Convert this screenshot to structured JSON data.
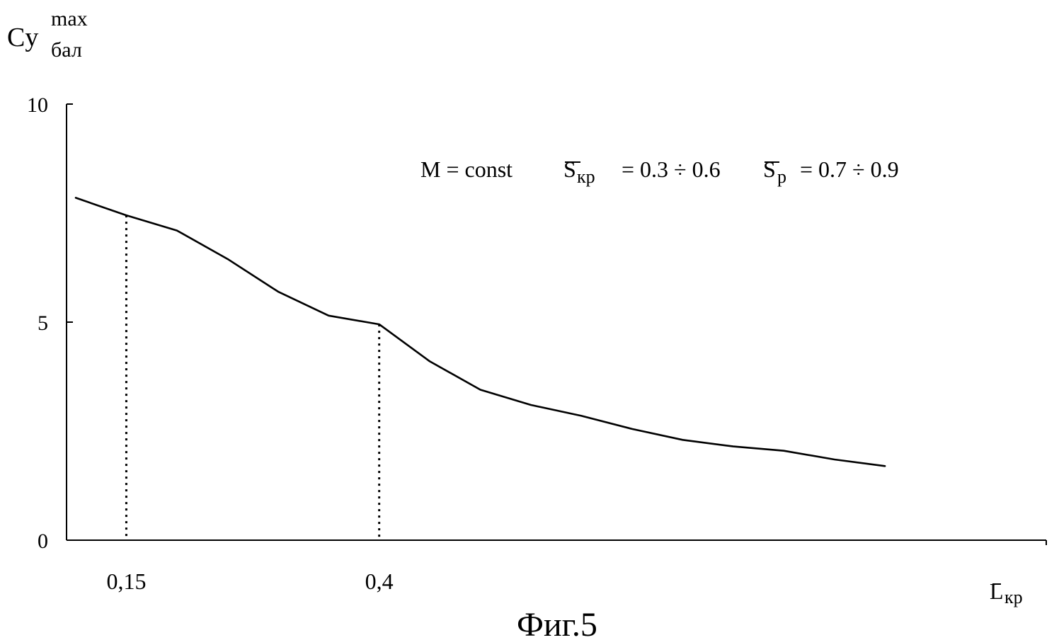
{
  "chart_data": {
    "type": "line",
    "title": "",
    "caption": "Фиг.5",
    "ylabel": {
      "base": "Cy",
      "sup": "max",
      "sub": "бал"
    },
    "xlabel": {
      "base": "L",
      "sub": "кр"
    },
    "annotation": {
      "part1": "M = const",
      "s1_base": "S",
      "s1_sub": "кр",
      "s1_rest": "= 0.3 ÷ 0.6",
      "s2_base": "S",
      "s2_sub": "p",
      "s2_rest": "= 0.7 ÷ 0.9"
    },
    "xlim": [
      0.1,
      1.0
    ],
    "ylim": [
      0,
      10
    ],
    "y_ticks": [
      {
        "value": 0,
        "label": "0"
      },
      {
        "value": 5,
        "label": "5"
      },
      {
        "value": 10,
        "label": "10"
      }
    ],
    "x_ticks": [
      {
        "value": 0.15,
        "label": "0,15"
      },
      {
        "value": 0.4,
        "label": "0,4"
      }
    ],
    "grid": false,
    "series": [
      {
        "x": [
          0.1,
          0.15,
          0.2,
          0.25,
          0.3,
          0.35,
          0.4,
          0.45,
          0.5,
          0.55,
          0.6,
          0.65,
          0.7,
          0.75,
          0.8,
          0.85,
          0.9
        ],
        "y": [
          7.85,
          7.45,
          7.1,
          6.45,
          5.7,
          5.15,
          4.95,
          4.1,
          3.45,
          3.1,
          2.85,
          2.55,
          2.3,
          2.15,
          2.05,
          1.85,
          1.7
        ]
      }
    ],
    "reference_lines": [
      {
        "x": 0.15,
        "y": 7.45
      },
      {
        "x": 0.4,
        "y": 4.95
      }
    ]
  }
}
